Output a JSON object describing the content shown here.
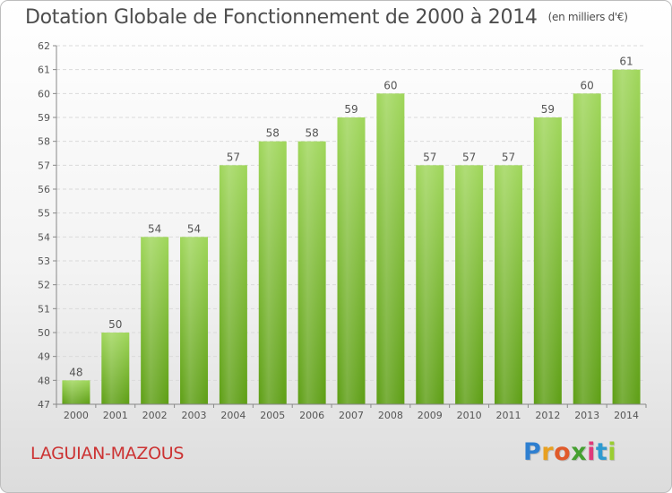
{
  "header": {
    "title": "Dotation Globale de Fonctionnement de 2000 à 2014",
    "unit": "(en milliers d'€)"
  },
  "footer": {
    "commune": "LAGUIAN-MAZOUS",
    "logo_letters": [
      "P",
      "r",
      "o",
      "x",
      "i",
      "t",
      "i"
    ],
    "logo_colors": [
      "#2e7fd0",
      "#e8a020",
      "#e05a2a",
      "#45a030",
      "#e03a7a",
      "#2e9ad0",
      "#9acd32"
    ]
  },
  "chart_data": {
    "type": "bar",
    "title": "Dotation Globale de Fonctionnement de 2000 à 2014",
    "xlabel": "",
    "ylabel": "",
    "categories": [
      "2000",
      "2001",
      "2002",
      "2003",
      "2004",
      "2005",
      "2006",
      "2007",
      "2008",
      "2009",
      "2010",
      "2011",
      "2012",
      "2013",
      "2014"
    ],
    "values": [
      48,
      50,
      54,
      54,
      57,
      58,
      58,
      59,
      60,
      57,
      57,
      57,
      59,
      60,
      61
    ],
    "ylim": [
      47,
      62
    ],
    "yticks": [
      47,
      48,
      49,
      50,
      51,
      52,
      53,
      54,
      55,
      56,
      57,
      58,
      59,
      60,
      61,
      62
    ],
    "grid": true,
    "bar_color_top": "#9fd65a",
    "bar_color_bottom": "#5d9e14"
  }
}
